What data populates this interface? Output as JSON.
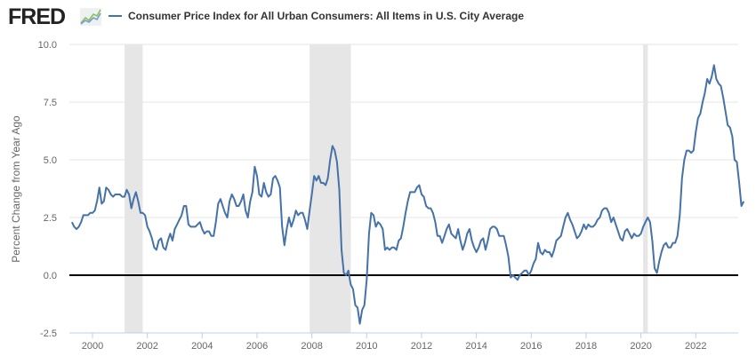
{
  "header": {
    "logo_text": "FRED",
    "logo_icon": "chart-line-icon",
    "legend_label": "Consumer Price Index for All Urban Consumers: All Items in U.S. City Average",
    "series_color": "#4572a7"
  },
  "chart_data": {
    "type": "line",
    "title": "Consumer Price Index for All Urban Consumers: All Items in U.S. City Average",
    "xlabel": "",
    "ylabel": "Percent Change from Year Ago",
    "ylim": [
      -2.5,
      10.0
    ],
    "xlim": [
      1999.25,
      2023.5
    ],
    "yticks": [
      "-2.5",
      "0.0",
      "2.5",
      "5.0",
      "7.5",
      "10.0"
    ],
    "yticks_values": [
      -2.5,
      0.0,
      2.5,
      5.0,
      7.5,
      10.0
    ],
    "xticks": [
      "2000",
      "2002",
      "2004",
      "2006",
      "2008",
      "2010",
      "2012",
      "2014",
      "2016",
      "2018",
      "2020",
      "2022"
    ],
    "xticks_values": [
      2000,
      2002,
      2004,
      2006,
      2008,
      2010,
      2012,
      2014,
      2016,
      2018,
      2020,
      2022
    ],
    "grid": true,
    "zero_line": true,
    "legend": "top-left",
    "recessions": [
      [
        2001.17,
        2001.83
      ],
      [
        2007.92,
        2009.42
      ],
      [
        2020.08,
        2020.25
      ]
    ],
    "series": [
      {
        "name": "Consumer Price Index for All Urban Consumers: All Items in U.S. City Average",
        "start": "1999-04",
        "frequency": "monthly",
        "values": [
          2.3,
          2.1,
          2.0,
          2.1,
          2.3,
          2.6,
          2.6,
          2.6,
          2.7,
          2.7,
          2.8,
          3.2,
          3.8,
          3.1,
          3.2,
          3.8,
          3.7,
          3.5,
          3.4,
          3.5,
          3.5,
          3.5,
          3.4,
          3.4,
          3.7,
          3.5,
          2.9,
          3.3,
          3.6,
          3.2,
          2.7,
          2.7,
          2.6,
          2.1,
          1.9,
          1.6,
          1.2,
          1.1,
          1.5,
          1.6,
          1.2,
          1.1,
          1.5,
          1.8,
          1.5,
          2.0,
          2.2,
          2.4,
          2.6,
          3.0,
          3.0,
          2.2,
          2.1,
          2.1,
          2.1,
          2.2,
          2.3,
          2.0,
          1.8,
          1.9,
          1.9,
          1.7,
          1.7,
          2.3,
          3.1,
          3.3,
          3.0,
          2.7,
          2.5,
          3.2,
          3.5,
          3.3,
          3.0,
          3.0,
          3.2,
          3.5,
          2.8,
          2.5,
          3.2,
          3.6,
          4.7,
          4.3,
          3.5,
          3.4,
          4.0,
          3.6,
          3.4,
          3.5,
          4.2,
          4.3,
          4.1,
          3.8,
          2.1,
          1.3,
          2.0,
          2.5,
          2.1,
          2.4,
          2.8,
          2.6,
          2.7,
          2.7,
          2.4,
          2.0,
          2.8,
          3.5,
          4.3,
          4.1,
          4.3,
          4.0,
          4.0,
          3.9,
          4.2,
          5.0,
          5.6,
          5.4,
          4.9,
          3.7,
          1.1,
          0.1,
          0.0,
          0.2,
          -0.4,
          -0.6,
          -1.3,
          -1.4,
          -2.1,
          -1.5,
          -1.3,
          -0.2,
          1.8,
          2.7,
          2.6,
          2.1,
          2.3,
          2.2,
          2.0,
          1.1,
          1.2,
          1.1,
          1.2,
          1.2,
          1.1,
          1.5,
          1.6,
          2.1,
          2.7,
          3.2,
          3.6,
          3.6,
          3.6,
          3.8,
          3.9,
          3.5,
          3.4,
          3.0,
          2.9,
          2.9,
          2.7,
          2.3,
          1.7,
          1.7,
          1.4,
          1.7,
          2.0,
          2.2,
          1.8,
          1.7,
          1.6,
          2.0,
          1.5,
          1.1,
          1.4,
          1.8,
          2.0,
          1.5,
          1.2,
          1.0,
          1.2,
          1.5,
          1.6,
          1.1,
          1.5,
          2.0,
          2.1,
          2.1,
          2.0,
          1.7,
          1.7,
          1.7,
          1.3,
          0.8,
          -0.1,
          0.0,
          -0.1,
          -0.2,
          0.0,
          0.1,
          0.2,
          0.2,
          0.0,
          0.2,
          0.5,
          0.7,
          1.4,
          1.0,
          0.9,
          1.1,
          1.0,
          1.0,
          0.8,
          1.1,
          1.5,
          1.6,
          1.7,
          2.1,
          2.5,
          2.7,
          2.4,
          2.2,
          1.9,
          1.6,
          1.7,
          1.9,
          2.2,
          2.0,
          2.2,
          2.1,
          2.1,
          2.2,
          2.4,
          2.5,
          2.8,
          2.9,
          2.9,
          2.7,
          2.3,
          2.5,
          2.2,
          1.9,
          1.6,
          1.5,
          1.9,
          2.0,
          1.8,
          1.6,
          1.8,
          1.7,
          1.7,
          1.8,
          2.1,
          2.3,
          2.5,
          2.3,
          1.5,
          0.3,
          0.1,
          0.6,
          1.0,
          1.3,
          1.4,
          1.2,
          1.2,
          1.4,
          1.4,
          1.7,
          2.6,
          4.2,
          5.0,
          5.4,
          5.4,
          5.3,
          5.4,
          6.2,
          6.8,
          7.0,
          7.5,
          7.9,
          8.5,
          8.3,
          8.6,
          9.1,
          8.5,
          8.3,
          8.2,
          7.7,
          7.1,
          6.5,
          6.4,
          6.0,
          5.0,
          4.9,
          4.0,
          3.0,
          3.2
        ]
      }
    ]
  }
}
